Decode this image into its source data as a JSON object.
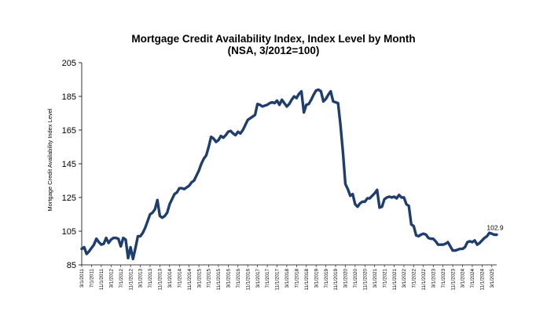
{
  "chart_data": {
    "type": "line",
    "title": "Mortgage Credit Availability Index, Index Level by Month",
    "subtitle": "(NSA, 3/2012=100)",
    "xlabel": "",
    "ylabel": "Mortgage Credit Availability Index Level",
    "ylim": [
      85,
      205
    ],
    "yticks": [
      85,
      105,
      125,
      145,
      165,
      185,
      205
    ],
    "x_range": [
      "2011-03",
      "2025-05"
    ],
    "x_tick_labels": [
      "3/1/2011",
      "7/1/2011",
      "11/1/2011",
      "3/1/2012",
      "7/1/2012",
      "11/1/2012",
      "3/1/2013",
      "7/1/2013",
      "11/1/2013",
      "3/1/2014",
      "7/1/2014",
      "11/1/2014",
      "3/1/2015",
      "7/1/2015",
      "11/1/2015",
      "3/1/2016",
      "7/1/2016",
      "11/1/2016",
      "3/1/2017",
      "7/1/2017",
      "11/1/2017",
      "3/1/2018",
      "7/1/2018",
      "11/1/2018",
      "3/1/2019",
      "7/1/2019",
      "11/1/2019",
      "3/1/2020",
      "7/1/2020",
      "11/1/2020",
      "3/1/2021",
      "7/1/2021",
      "11/1/2021",
      "3/1/2022",
      "7/1/2022",
      "11/1/2022",
      "3/1/2023",
      "7/1/2023",
      "11/1/2023",
      "3/1/2024",
      "7/1/2024",
      "11/1/2024",
      "3/1/2025"
    ],
    "grid": false,
    "legend": "none",
    "line_color": "#1F3E6E",
    "data_label": "102.9",
    "series": [
      {
        "points": [
          [
            "2011-03",
            94.5
          ],
          [
            "2011-04",
            95.5
          ],
          [
            "2011-05",
            91.5
          ],
          [
            "2011-06",
            93
          ],
          [
            "2011-07",
            95
          ],
          [
            "2011-08",
            97
          ],
          [
            "2011-09",
            100.5
          ],
          [
            "2011-10",
            98.5
          ],
          [
            "2011-11",
            97
          ],
          [
            "2011-12",
            97.5
          ],
          [
            "2012-01",
            101
          ],
          [
            "2012-02",
            98
          ],
          [
            "2012-03",
            100
          ],
          [
            "2012-04",
            101
          ],
          [
            "2012-05",
            101
          ],
          [
            "2012-06",
            100.5
          ],
          [
            "2012-07",
            96
          ],
          [
            "2012-08",
            101
          ],
          [
            "2012-09",
            100
          ],
          [
            "2012-10",
            89
          ],
          [
            "2012-11",
            95.5
          ],
          [
            "2012-12",
            88.5
          ],
          [
            "2013-01",
            95
          ],
          [
            "2013-02",
            102
          ],
          [
            "2013-03",
            102
          ],
          [
            "2013-04",
            104
          ],
          [
            "2013-05",
            107
          ],
          [
            "2013-06",
            111
          ],
          [
            "2013-07",
            115
          ],
          [
            "2013-08",
            116
          ],
          [
            "2013-09",
            118
          ],
          [
            "2013-10",
            123.5
          ],
          [
            "2013-11",
            114
          ],
          [
            "2013-12",
            113
          ],
          [
            "2014-01",
            114
          ],
          [
            "2014-02",
            116
          ],
          [
            "2014-03",
            121
          ],
          [
            "2014-04",
            124
          ],
          [
            "2014-05",
            127
          ],
          [
            "2014-06",
            128
          ],
          [
            "2014-07",
            130.5
          ],
          [
            "2014-08",
            130.5
          ],
          [
            "2014-09",
            130
          ],
          [
            "2014-10",
            131
          ],
          [
            "2014-11",
            132
          ],
          [
            "2014-12",
            134
          ],
          [
            "2015-01",
            135
          ],
          [
            "2015-02",
            138
          ],
          [
            "2015-03",
            141
          ],
          [
            "2015-04",
            145
          ],
          [
            "2015-05",
            148
          ],
          [
            "2015-06",
            150
          ],
          [
            "2015-07",
            155
          ],
          [
            "2015-08",
            161
          ],
          [
            "2015-09",
            160
          ],
          [
            "2015-10",
            158
          ],
          [
            "2015-11",
            159
          ],
          [
            "2015-12",
            161.5
          ],
          [
            "2016-01",
            160.5
          ],
          [
            "2016-02",
            162
          ],
          [
            "2016-03",
            164
          ],
          [
            "2016-04",
            164.5
          ],
          [
            "2016-05",
            163
          ],
          [
            "2016-06",
            162
          ],
          [
            "2016-07",
            164
          ],
          [
            "2016-08",
            163
          ],
          [
            "2016-09",
            165
          ],
          [
            "2016-10",
            168
          ],
          [
            "2016-11",
            171
          ],
          [
            "2016-12",
            172
          ],
          [
            "2017-01",
            173
          ],
          [
            "2017-02",
            174
          ],
          [
            "2017-03",
            180.5
          ],
          [
            "2017-04",
            180
          ],
          [
            "2017-05",
            179
          ],
          [
            "2017-06",
            179.5
          ],
          [
            "2017-07",
            180
          ],
          [
            "2017-08",
            181
          ],
          [
            "2017-09",
            181.5
          ],
          [
            "2017-10",
            181
          ],
          [
            "2017-11",
            182.5
          ],
          [
            "2017-12",
            180
          ],
          [
            "2018-01",
            183
          ],
          [
            "2018-02",
            181
          ],
          [
            "2018-03",
            179
          ],
          [
            "2018-04",
            180.5
          ],
          [
            "2018-05",
            183
          ],
          [
            "2018-06",
            185
          ],
          [
            "2018-07",
            184
          ],
          [
            "2018-08",
            186.5
          ],
          [
            "2018-09",
            188
          ],
          [
            "2018-10",
            175.5
          ],
          [
            "2018-11",
            180
          ],
          [
            "2018-12",
            180.5
          ],
          [
            "2019-01",
            183
          ],
          [
            "2019-02",
            186
          ],
          [
            "2019-03",
            188.5
          ],
          [
            "2019-04",
            189
          ],
          [
            "2019-05",
            188
          ],
          [
            "2019-06",
            182
          ],
          [
            "2019-07",
            183.5
          ],
          [
            "2019-08",
            186
          ],
          [
            "2019-09",
            188
          ],
          [
            "2019-10",
            182
          ],
          [
            "2019-11",
            181.5
          ],
          [
            "2019-12",
            181
          ],
          [
            "2020-01",
            168
          ],
          [
            "2020-02",
            152
          ],
          [
            "2020-03",
            133
          ],
          [
            "2020-04",
            130
          ],
          [
            "2020-05",
            126
          ],
          [
            "2020-06",
            127
          ],
          [
            "2020-07",
            121
          ],
          [
            "2020-08",
            119.5
          ],
          [
            "2020-09",
            121.5
          ],
          [
            "2020-10",
            122.5
          ],
          [
            "2020-11",
            122.5
          ],
          [
            "2020-12",
            124.5
          ],
          [
            "2021-01",
            124.5
          ],
          [
            "2021-02",
            126
          ],
          [
            "2021-03",
            127.5
          ],
          [
            "2021-04",
            129.5
          ],
          [
            "2021-05",
            119
          ],
          [
            "2021-06",
            119.5
          ],
          [
            "2021-07",
            124
          ],
          [
            "2021-08",
            125
          ],
          [
            "2021-09",
            125.5
          ],
          [
            "2021-10",
            125
          ],
          [
            "2021-11",
            125.5
          ],
          [
            "2021-12",
            124.5
          ],
          [
            "2022-01",
            126.5
          ],
          [
            "2022-02",
            125
          ],
          [
            "2022-03",
            125
          ],
          [
            "2022-04",
            121
          ],
          [
            "2022-05",
            120
          ],
          [
            "2022-06",
            109
          ],
          [
            "2022-07",
            108
          ],
          [
            "2022-08",
            102.5
          ],
          [
            "2022-09",
            102
          ],
          [
            "2022-10",
            103
          ],
          [
            "2022-11",
            103.5
          ],
          [
            "2022-12",
            103
          ],
          [
            "2023-01",
            101
          ],
          [
            "2023-02",
            100.5
          ],
          [
            "2023-03",
            100.5
          ],
          [
            "2023-04",
            99
          ],
          [
            "2023-05",
            97
          ],
          [
            "2023-06",
            97
          ],
          [
            "2023-07",
            97
          ],
          [
            "2023-08",
            97.5
          ],
          [
            "2023-09",
            98.5
          ],
          [
            "2023-10",
            96
          ],
          [
            "2023-11",
            93.5
          ],
          [
            "2023-12",
            93.5
          ],
          [
            "2024-01",
            94
          ],
          [
            "2024-02",
            94.5
          ],
          [
            "2024-03",
            94.5
          ],
          [
            "2024-04",
            95.5
          ],
          [
            "2024-05",
            98.5
          ],
          [
            "2024-06",
            99
          ],
          [
            "2024-07",
            98.5
          ],
          [
            "2024-08",
            99.5
          ],
          [
            "2024-09",
            97
          ],
          [
            "2024-10",
            98
          ],
          [
            "2024-11",
            99.5
          ],
          [
            "2024-12",
            101
          ],
          [
            "2025-01",
            102
          ],
          [
            "2025-02",
            104
          ],
          [
            "2025-03",
            103.5
          ],
          [
            "2025-04",
            102.9
          ],
          [
            "2025-05",
            102.9
          ]
        ]
      }
    ]
  }
}
